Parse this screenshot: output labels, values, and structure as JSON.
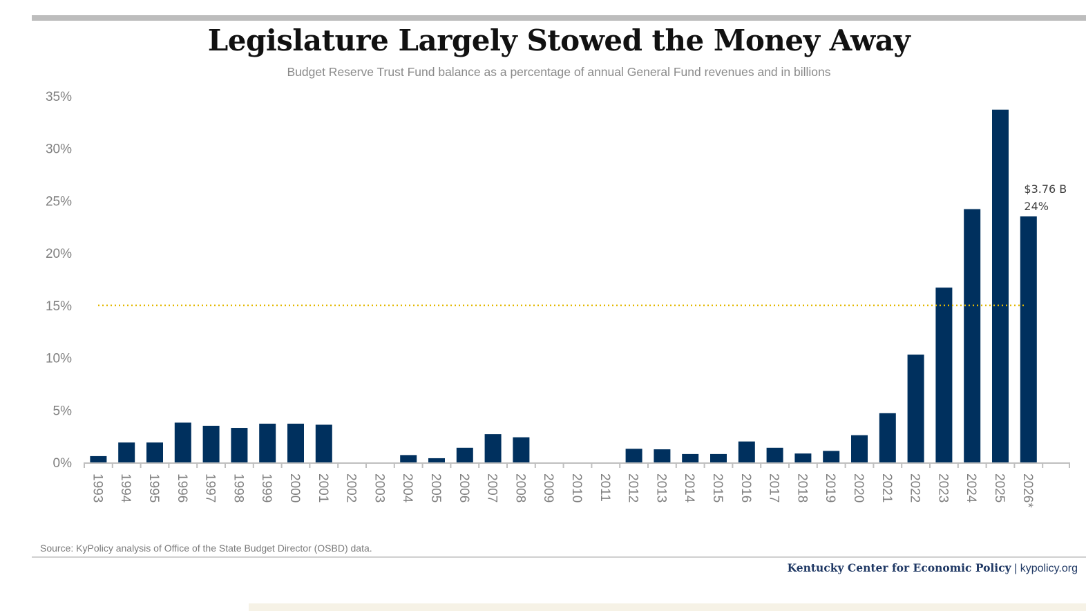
{
  "header": {
    "title": "Legislature Largely Stowed the Money Away",
    "subtitle": "Budget Reserve Trust Fund balance as a percentage of annual General Fund revenues and in billions"
  },
  "chart_data": {
    "type": "bar",
    "title": "Legislature Largely Stowed the Money Away",
    "subtitle": "Budget Reserve Trust Fund balance as a percentage of annual General Fund revenues and in billions",
    "categories": [
      "1993",
      "1994",
      "1995",
      "1996",
      "1997",
      "1998",
      "1999",
      "2000",
      "2001",
      "2002",
      "2003",
      "2004",
      "2005",
      "2006",
      "2007",
      "2008",
      "2009",
      "2010",
      "2011",
      "2012",
      "2013",
      "2014",
      "2015",
      "2016",
      "2017",
      "2018",
      "2019",
      "2020",
      "2021",
      "2022",
      "2023",
      "2024",
      "2025",
      "2026*"
    ],
    "values": [
      0.6,
      1.9,
      1.9,
      3.8,
      3.5,
      3.3,
      3.7,
      3.7,
      3.6,
      0,
      0,
      0.7,
      0.4,
      1.4,
      2.7,
      2.4,
      0,
      0,
      0,
      1.3,
      1.25,
      0.8,
      0.8,
      2.0,
      1.4,
      0.85,
      1.1,
      2.6,
      4.7,
      10.3,
      16.7,
      24.2,
      33.7,
      23.5
    ],
    "yticks": [
      "0%",
      "5%",
      "10%",
      "15%",
      "20%",
      "25%",
      "30%",
      "35%"
    ],
    "ylim": [
      0,
      35
    ],
    "reference_line": {
      "value": 15,
      "style": "dotted",
      "color": "#e3b800"
    },
    "annotation": {
      "category": "2026*",
      "lines": [
        "$3.76 B",
        "24%"
      ]
    },
    "bar_color": "#00305e",
    "grid": false,
    "xlabel": "",
    "ylabel": ""
  },
  "footer": {
    "source": "Source: KyPolicy analysis of Office of the State Budget Director (OSBD) data.",
    "org": "Kentucky Center for Economic Policy",
    "separator": "|",
    "url": "kypolicy.org"
  }
}
